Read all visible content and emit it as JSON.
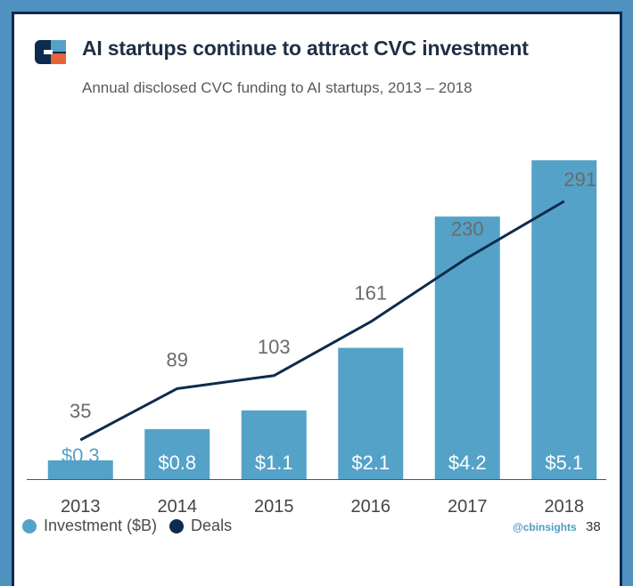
{
  "header": {
    "title": "AI startups continue to attract CVC investment",
    "subtitle": "Annual disclosed CVC funding to AI startups,  2013 – 2018"
  },
  "colors": {
    "bar": "#54a2c8",
    "line": "#0d2b4e",
    "first_bar_label": "#54a2c8",
    "bar_label": "#ffffff",
    "deal_label": "#6a6a6a",
    "axis": "#555555"
  },
  "chart_data": {
    "type": "bar",
    "title": "AI startups continue to attract CVC investment",
    "subtitle": "Annual disclosed CVC funding to AI startups, 2013 – 2018",
    "categories": [
      "2013",
      "2014",
      "2015",
      "2016",
      "2017",
      "2018"
    ],
    "series": [
      {
        "name": "Investment ($B)",
        "type": "bar",
        "values": [
          0.3,
          0.8,
          1.1,
          2.1,
          4.2,
          5.1
        ],
        "labels": [
          "$0.3",
          "$0.8",
          "$1.1",
          "$2.1",
          "$4.2",
          "$5.1"
        ]
      },
      {
        "name": "Deals",
        "type": "line",
        "values": [
          35,
          89,
          103,
          161,
          230,
          291
        ],
        "labels": [
          "35",
          "89",
          "103",
          "161",
          "230",
          "291"
        ]
      }
    ],
    "xlabel": "",
    "ylabel": "",
    "ylim_bars": [
      0,
      5.5
    ],
    "ylim_deals": [
      0,
      330
    ],
    "grid": false,
    "legend": "bottom-left"
  },
  "legend": {
    "investment": "Investment ($B)",
    "deals": "Deals"
  },
  "footer": {
    "handle": "@cbinsights",
    "page_number": "38"
  }
}
